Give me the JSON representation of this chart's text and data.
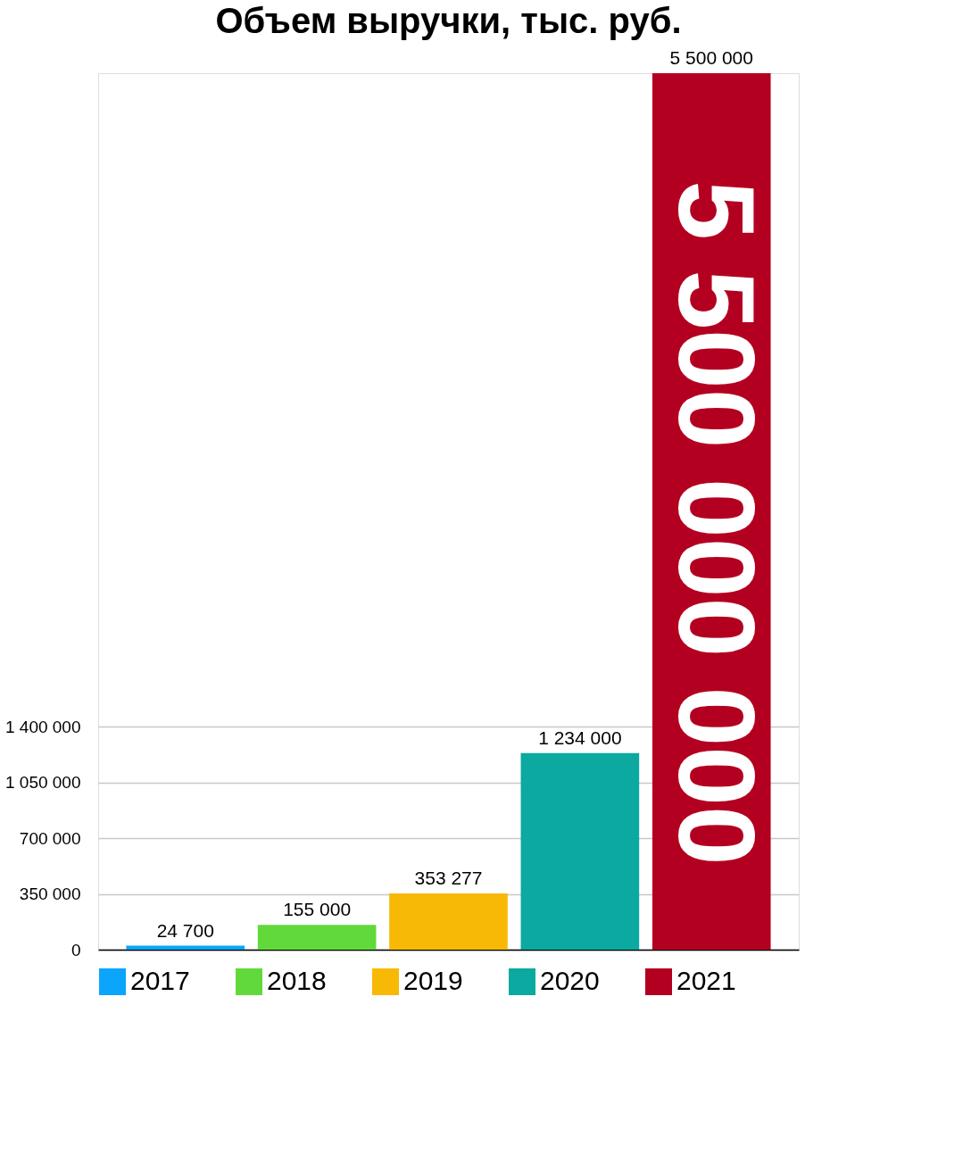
{
  "chart_data": {
    "type": "bar",
    "title": "Объем выручки, тыс. руб.",
    "categories": [
      null
    ],
    "series": [
      {
        "name": "2017",
        "color": "#0ba5fc",
        "values": [
          24700
        ],
        "value_labels": [
          "24 700"
        ]
      },
      {
        "name": "2018",
        "color": "#62d93b",
        "values": [
          155000
        ],
        "value_labels": [
          "155 000"
        ]
      },
      {
        "name": "2019",
        "color": "#f7b905",
        "values": [
          353277
        ],
        "value_labels": [
          "353 277"
        ]
      },
      {
        "name": "2020",
        "color": "#0ba99f",
        "values": [
          1234000
        ],
        "value_labels": [
          "1 234 000"
        ]
      },
      {
        "name": "2021",
        "color": "#b40020",
        "values": [
          5500000
        ],
        "value_labels": [
          "5 500 000"
        ]
      }
    ],
    "annotations": [
      "5 500 000 000"
    ],
    "ylim": [
      0,
      5500000
    ],
    "yticks": [
      {
        "value": 0,
        "label": "0"
      },
      {
        "value": 350000,
        "label": "350 000"
      },
      {
        "value": 700000,
        "label": "700 000"
      },
      {
        "value": 1050000,
        "label": "1 050 000"
      },
      {
        "value": 1400000,
        "label": "1 400 000"
      }
    ],
    "grid": "y",
    "legend": "bottom",
    "tick_labels": "y"
  }
}
